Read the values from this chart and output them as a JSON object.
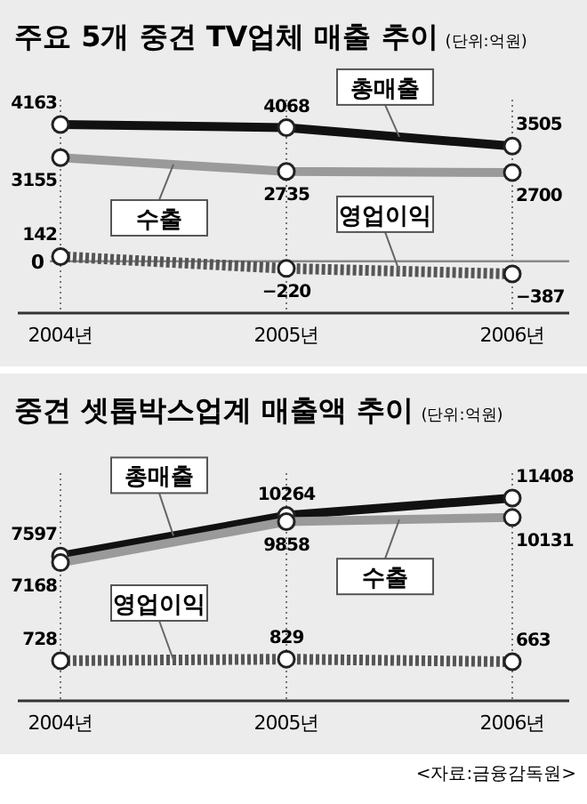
{
  "chart_data": [
    {
      "type": "line",
      "title": "주요 5개 중견 TV업체 매출 추이",
      "subtitle": "(단위:억원)",
      "categories": [
        "2004년",
        "2005년",
        "2006년"
      ],
      "series": [
        {
          "name": "총매출",
          "color": "#111111",
          "values": [
            4163,
            4068,
            3505
          ]
        },
        {
          "name": "수출",
          "color": "#9a9a9a",
          "values": [
            3155,
            2735,
            2700
          ]
        },
        {
          "name": "영업이익",
          "color": "#555555",
          "values": [
            142,
            -220,
            -387
          ],
          "line_style": "dotted"
        }
      ],
      "ref_lines": [
        {
          "axis": "y",
          "value": 0,
          "label": "0"
        }
      ],
      "data_labels": true,
      "marker": "circle",
      "grid": "x",
      "line_style": "solid"
    },
    {
      "type": "line",
      "title": "중견 셋톱박스업계 매출액 추이",
      "subtitle": "(단위:억원)",
      "categories": [
        "2004년",
        "2005년",
        "2006년"
      ],
      "series": [
        {
          "name": "총매출",
          "color": "#111111",
          "values": [
            7597,
            10264,
            11408
          ]
        },
        {
          "name": "수출",
          "color": "#9a9a9a",
          "values": [
            7168,
            9858,
            10131
          ]
        },
        {
          "name": "영업이익",
          "color": "#555555",
          "values": [
            728,
            829,
            663
          ],
          "line_style": "dotted"
        }
      ],
      "data_labels": true,
      "marker": "circle",
      "grid": "x",
      "line_style": "solid",
      "annotations": [
        "<자료:금융감독원>"
      ]
    }
  ]
}
